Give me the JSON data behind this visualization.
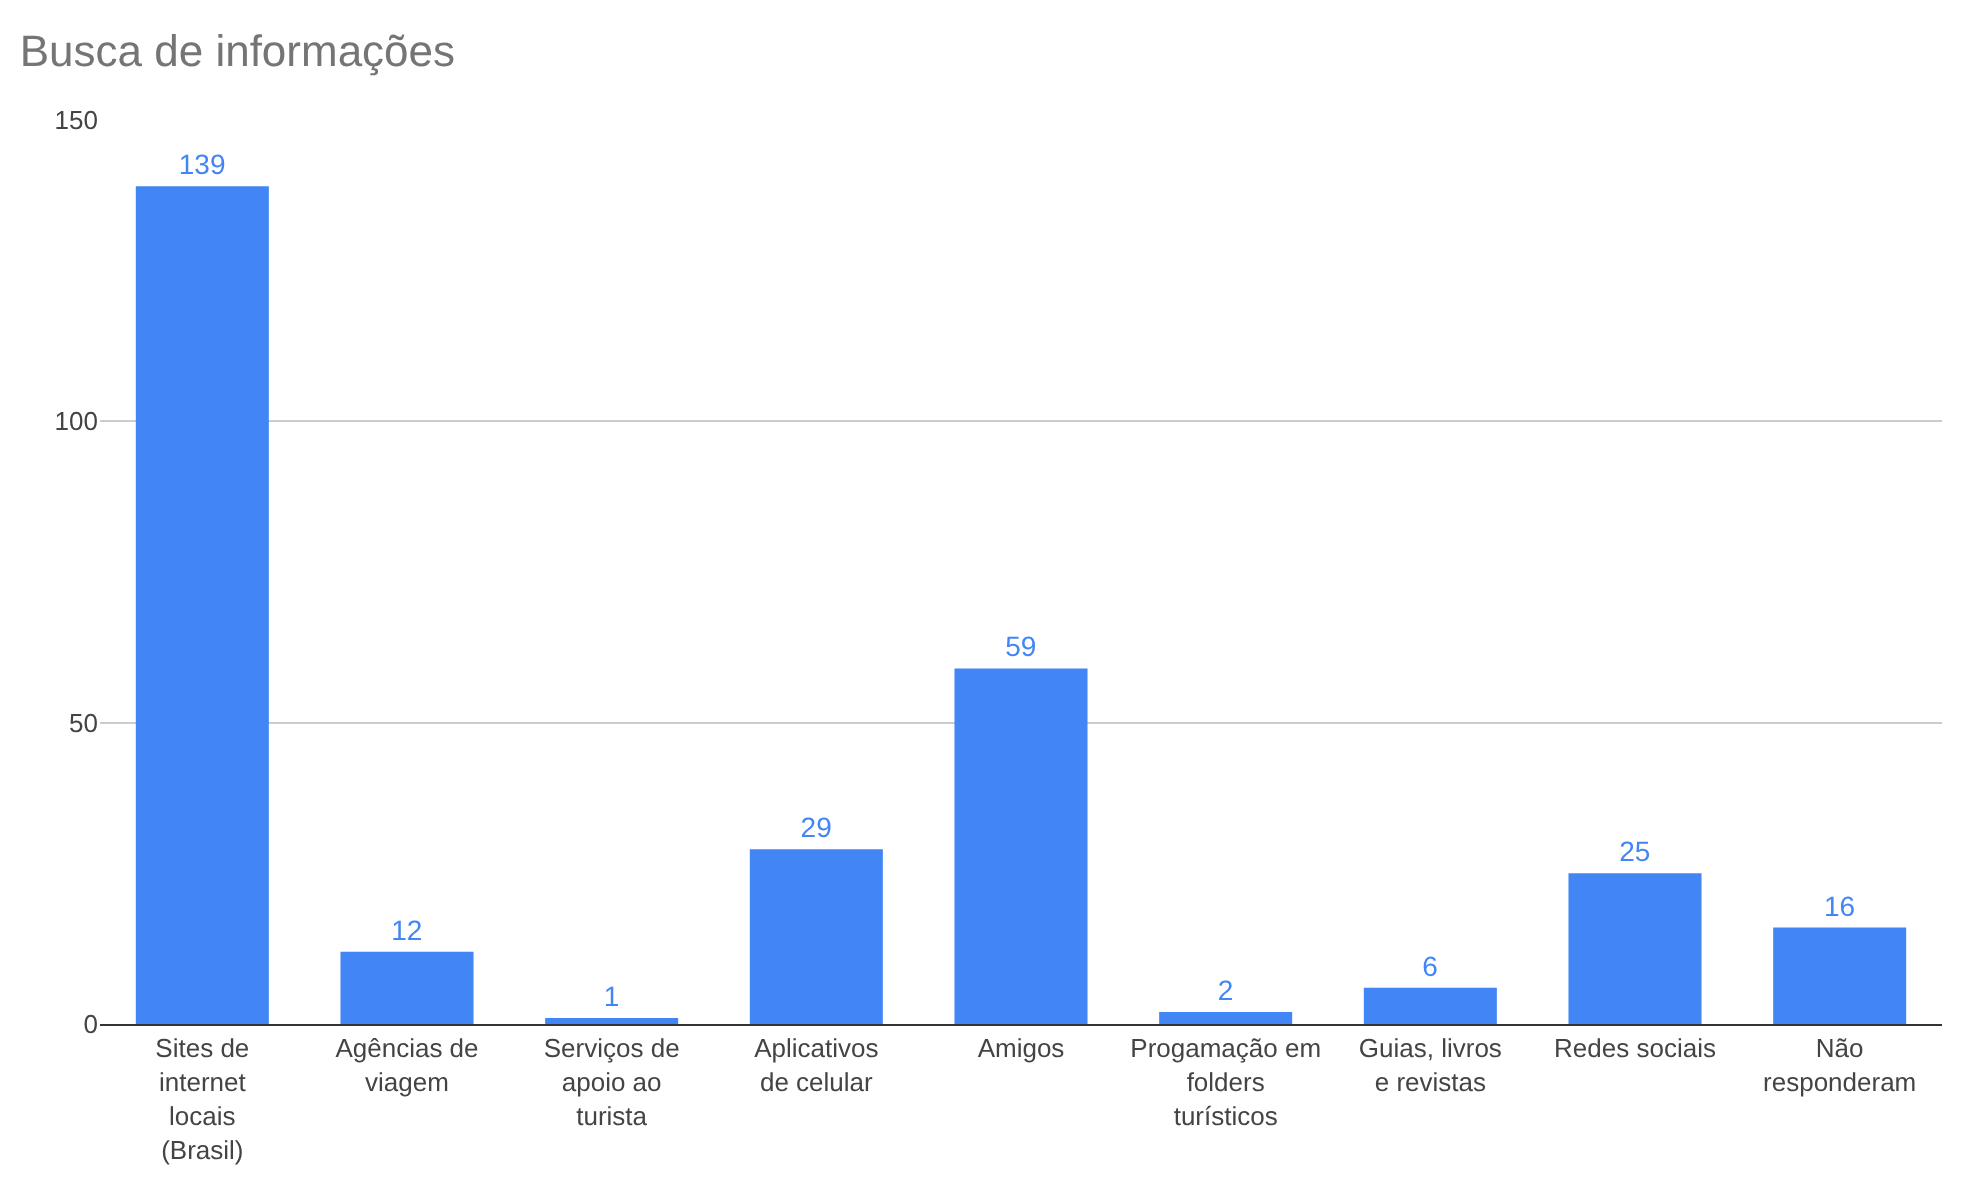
{
  "chart_data": {
    "type": "bar",
    "title": "Busca de informações",
    "categories": [
      "Sites de internet locais (Brasil)",
      "Agências de viagem",
      "Serviços de apoio ao turista",
      "Aplicativos de celular",
      "Amigos",
      "Progamação em folders turísticos",
      "Guias, livros e revistas",
      "Redes sociais",
      "Não responderam"
    ],
    "values": [
      139,
      12,
      1,
      29,
      59,
      2,
      6,
      25,
      16
    ],
    "color": "#4285f4",
    "ylim": [
      0,
      150
    ],
    "yticks": [
      0,
      50,
      100,
      150
    ],
    "grid": "y",
    "data_labels": true
  }
}
